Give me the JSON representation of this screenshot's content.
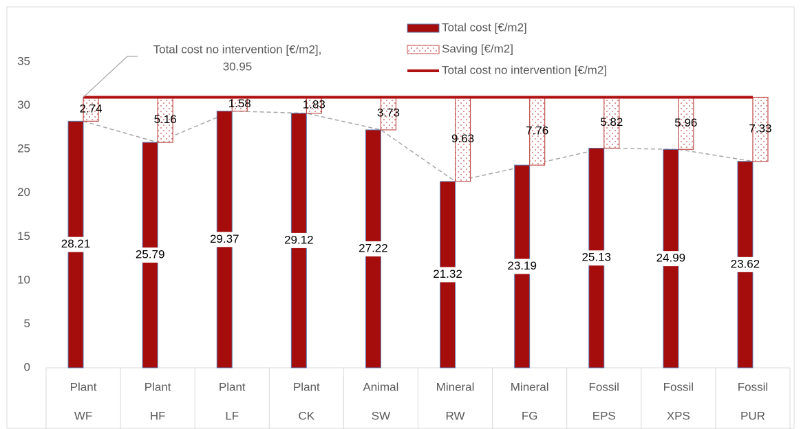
{
  "chart_data": {
    "type": "bar",
    "groups": [
      "Plant",
      "Plant",
      "Plant",
      "Plant",
      "Animal",
      "Mineral",
      "Mineral",
      "Fossil",
      "Fossil",
      "Fossil"
    ],
    "categories": [
      "WF",
      "HF",
      "LF",
      "CK",
      "SW",
      "RW",
      "FG",
      "EPS",
      "XPS",
      "PUR"
    ],
    "series": [
      {
        "name": "Total cost [€/m2]",
        "color": "#a50d0d",
        "values": [
          28.21,
          25.79,
          29.37,
          29.12,
          27.22,
          21.32,
          23.19,
          25.13,
          24.99,
          23.62
        ]
      },
      {
        "name": "Saving [€/m2]",
        "color": "#c0504d",
        "values": [
          2.74,
          5.16,
          1.58,
          1.83,
          3.73,
          9.63,
          7.76,
          5.82,
          5.96,
          7.33
        ]
      }
    ],
    "reference_line": {
      "name": "Total cost no intervention [€/m2]",
      "color": "#b01010",
      "value": 30.95
    },
    "annotation": "Total cost no intervention [€/m2],",
    "annotation_value": 30.95,
    "ylim": [
      0,
      35
    ],
    "yticks": [
      0,
      5,
      10,
      15,
      20,
      25,
      30,
      35
    ],
    "grid": false,
    "legend": "top-right"
  }
}
